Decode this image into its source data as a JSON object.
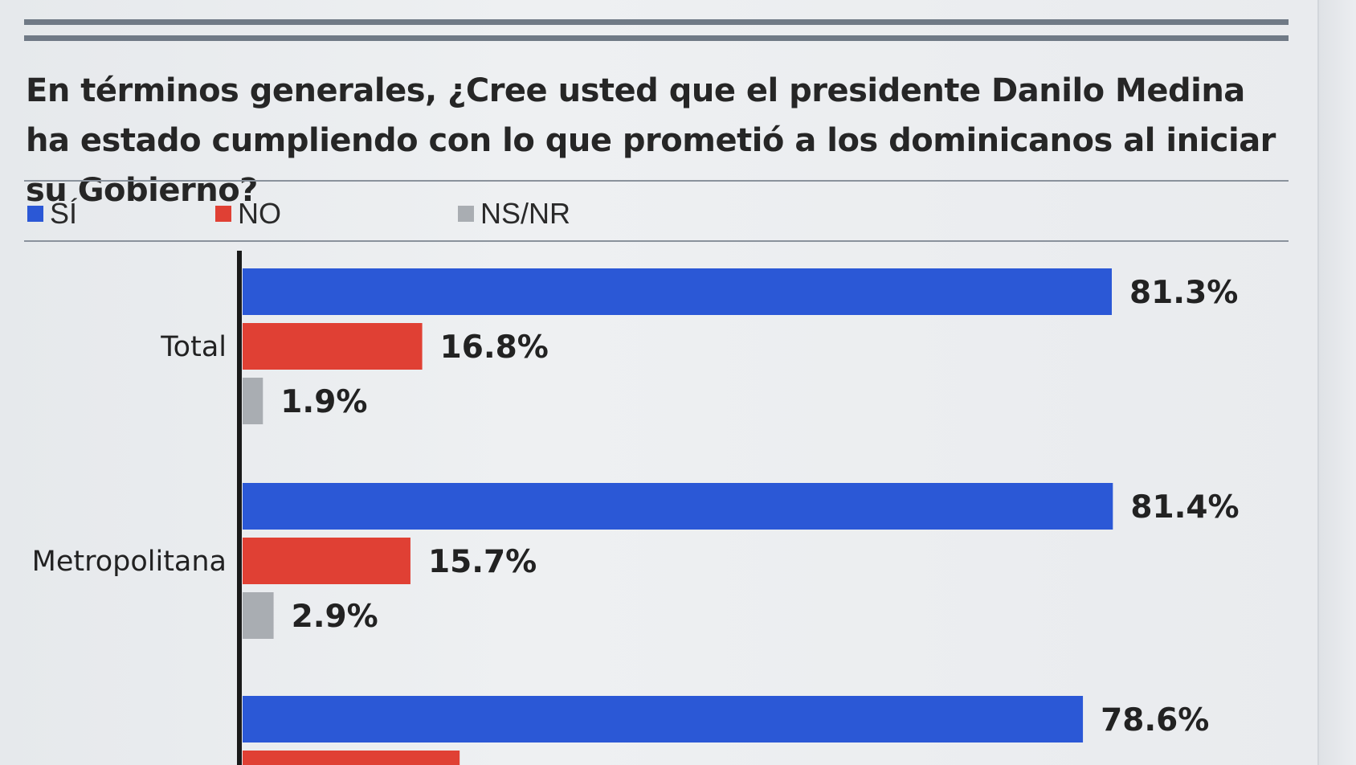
{
  "question": "En términos generales, ¿Cree usted que el presidente Danilo Medina ha estado cumpliendo con lo que prometió a los dominicanos al iniciar su Gobierno?",
  "legend": [
    {
      "label": "SÍ",
      "color": "#2b58d6"
    },
    {
      "label": "NO",
      "color": "#e04034"
    },
    {
      "label": "NS/NR",
      "color": "#a9adb2"
    }
  ],
  "chart_data": {
    "type": "bar",
    "orientation": "horizontal",
    "title": "En términos generales, ¿Cree usted que el presidente Danilo Medina ha estado cumpliendo con lo que prometió a los dominicanos al iniciar su Gobierno?",
    "categories": [
      "Total",
      "Metropolitana",
      ""
    ],
    "series": [
      {
        "name": "SÍ",
        "color": "#2b58d6",
        "values": [
          81.3,
          81.4,
          78.6
        ],
        "labels": [
          "81.3%",
          "81.4%",
          "78.6%"
        ]
      },
      {
        "name": "NO",
        "color": "#e04034",
        "values": [
          16.8,
          15.7,
          20.3
        ],
        "labels": [
          "16.8%",
          "15.7%",
          ""
        ]
      },
      {
        "name": "NS/NR",
        "color": "#a9adb2",
        "values": [
          1.9,
          2.9,
          null
        ],
        "labels": [
          "1.9%",
          "2.9%",
          ""
        ]
      }
    ],
    "xlim": [
      0,
      100
    ],
    "grid": false,
    "legend_position": "top-left"
  }
}
